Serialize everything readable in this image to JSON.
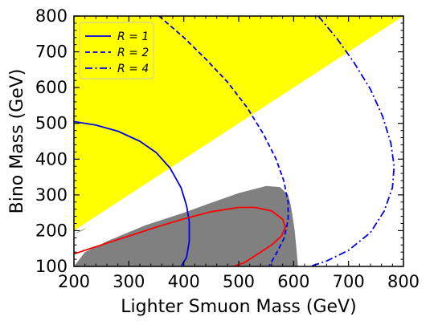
{
  "chart_data": {
    "type": "line",
    "xlabel": "Lighter Smuon Mass (GeV)",
    "ylabel": "Bino Mass (GeV)",
    "xlim": [
      200,
      800
    ],
    "ylim": [
      100,
      800
    ],
    "xticks": [
      200,
      300,
      400,
      500,
      600,
      700,
      800
    ],
    "yticks": [
      100,
      200,
      300,
      400,
      500,
      600,
      700,
      800
    ],
    "grid": false,
    "legend_position": "top-left",
    "regions": [
      {
        "name": "excluded-yellow",
        "color": "#ffff00",
        "points": [
          [
            200,
            800
          ],
          [
            800,
            800
          ],
          [
            200,
            200
          ]
        ]
      },
      {
        "name": "excluded-gray",
        "color": "#808080",
        "points": [
          [
            200,
            100
          ],
          [
            220,
            140
          ],
          [
            260,
            170
          ],
          [
            330,
            215
          ],
          [
            400,
            250
          ],
          [
            450,
            278
          ],
          [
            500,
            305
          ],
          [
            550,
            325
          ],
          [
            575,
            322
          ],
          [
            590,
            300
          ],
          [
            595,
            270
          ],
          [
            598,
            240
          ],
          [
            602,
            200
          ],
          [
            605,
            150
          ],
          [
            608,
            100
          ]
        ]
      }
    ],
    "series": [
      {
        "name": "R = 1",
        "color": "#0000ee",
        "dash": "solid",
        "points": [
          [
            200,
            505
          ],
          [
            240,
            495
          ],
          [
            280,
            478
          ],
          [
            320,
            450
          ],
          [
            350,
            418
          ],
          [
            375,
            375
          ],
          [
            395,
            320
          ],
          [
            405,
            270
          ],
          [
            410,
            225
          ],
          [
            410,
            170
          ],
          [
            405,
            125
          ],
          [
            395,
            100
          ]
        ]
      },
      {
        "name": "R = 2",
        "color": "#0000ee",
        "dash": "dashed",
        "points": [
          [
            355,
            800
          ],
          [
            400,
            740
          ],
          [
            440,
            680
          ],
          [
            480,
            615
          ],
          [
            515,
            545
          ],
          [
            545,
            470
          ],
          [
            568,
            400
          ],
          [
            582,
            340
          ],
          [
            590,
            280
          ],
          [
            590,
            230
          ],
          [
            583,
            180
          ],
          [
            570,
            140
          ],
          [
            555,
            100
          ]
        ]
      },
      {
        "name": "R = 4",
        "color": "#0000ee",
        "dash": "dashdot",
        "points": [
          [
            645,
            800
          ],
          [
            680,
            735
          ],
          [
            710,
            670
          ],
          [
            740,
            595
          ],
          [
            762,
            520
          ],
          [
            777,
            445
          ],
          [
            783,
            380
          ],
          [
            780,
            320
          ],
          [
            765,
            255
          ],
          [
            740,
            195
          ],
          [
            700,
            145
          ],
          [
            660,
            115
          ],
          [
            630,
            100
          ]
        ]
      },
      {
        "name": "red-contour",
        "color": "#ff0000",
        "dash": "solid",
        "points": [
          [
            200,
            135
          ],
          [
            240,
            155
          ],
          [
            300,
            185
          ],
          [
            350,
            210
          ],
          [
            400,
            233
          ],
          [
            450,
            253
          ],
          [
            500,
            265
          ],
          [
            530,
            265
          ],
          [
            560,
            255
          ],
          [
            580,
            232
          ],
          [
            585,
            210
          ],
          [
            578,
            185
          ],
          [
            560,
            160
          ],
          [
            535,
            135
          ],
          [
            510,
            110
          ],
          [
            490,
            100
          ]
        ]
      }
    ],
    "artifacts": [
      {
        "name": "gray-sliver",
        "color": "#808080",
        "points": [
          [
            200,
            190
          ],
          [
            215,
            200
          ],
          [
            240,
            225
          ],
          [
            225,
            210
          ],
          [
            205,
            195
          ]
        ]
      }
    ],
    "legend": [
      {
        "label": "R = 1",
        "dash": "solid",
        "color": "#0000ee"
      },
      {
        "label": "R = 2",
        "dash": "dashed",
        "color": "#0000ee"
      },
      {
        "label": "R = 4",
        "dash": "dashdot",
        "color": "#0000ee"
      }
    ]
  }
}
